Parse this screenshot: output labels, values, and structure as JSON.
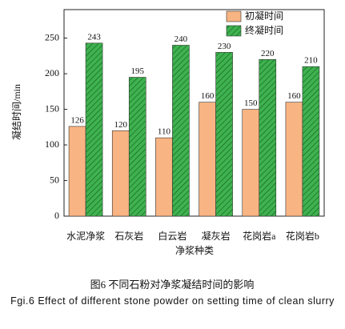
{
  "chart_data": {
    "type": "bar",
    "y_label": "凝结时间/min",
    "x_label": "净浆种类",
    "caption": "图6  不同石粉对净浆凝结时间的影响",
    "caption_en": "Fgi.6  Effect of different stone powder on setting time of clean slurry",
    "categories": [
      "水泥净浆",
      "石灰岩",
      "白云岩",
      "凝灰岩",
      "花岗岩a",
      "花岗岩b"
    ],
    "series": [
      {
        "name": "初凝时间",
        "color": "#f8b482",
        "hatch": false,
        "values": [
          126,
          120,
          110,
          160,
          150,
          160
        ]
      },
      {
        "name": "终凝时间",
        "color": "#3fb24f",
        "hatch": true,
        "values": [
          243,
          195,
          240,
          230,
          220,
          210
        ]
      }
    ],
    "ylim": [
      0,
      290
    ],
    "yticks": [
      0,
      50,
      100,
      150,
      200,
      250
    ],
    "grid": false,
    "legend": "top-right"
  }
}
